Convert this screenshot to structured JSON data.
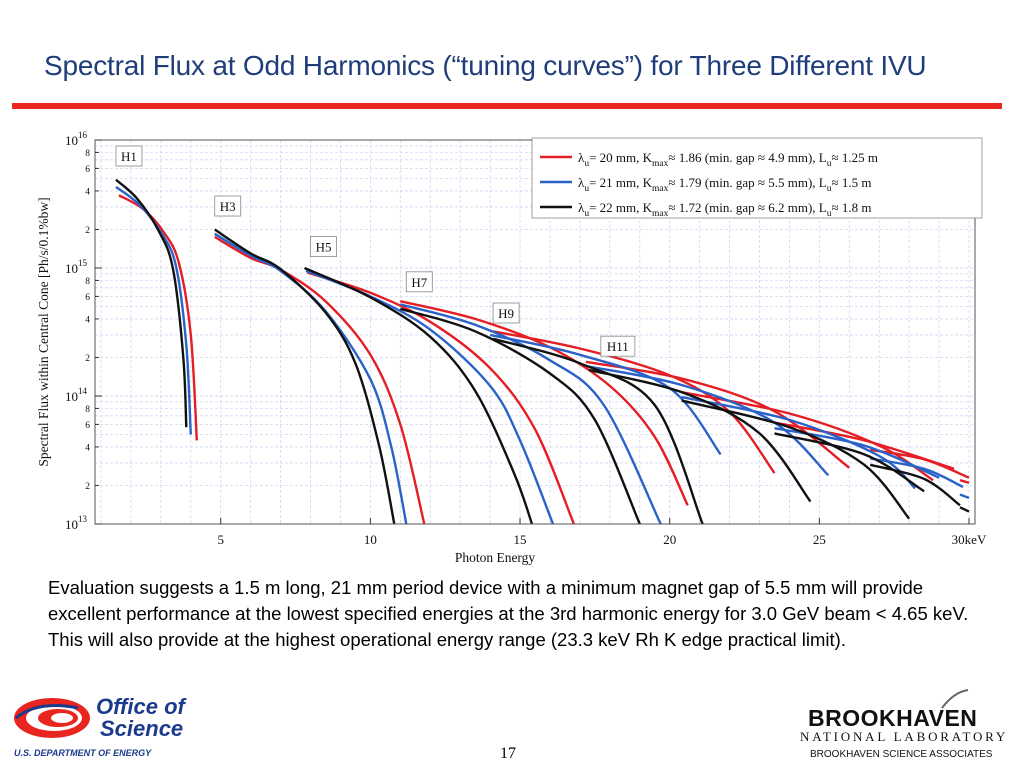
{
  "slide": {
    "title": "Spectral Flux at Odd Harmonics (“tuning curves”) for Three Different IVU",
    "caption": "Evaluation suggests a 1.5 m long, 21 mm period device with a minimum magnet gap of 5.5 mm will provide excellent performance at the lowest specified energies at the 3rd harmonic energy for 3.0 GeV beam < 4.65 keV. This will also provide at the highest operational energy range (23.3 keV Rh K edge practical limit).",
    "page_number": "17",
    "accent_color": "#e8251f",
    "title_color": "#1f3d7a"
  },
  "footer": {
    "doe_office": "Office of",
    "doe_science": "Science",
    "doe_dept": "U.S. DEPARTMENT OF ENERGY",
    "bnl_name": "BROOKHAVEN",
    "bnl_lab": "NATIONAL LABORATORY",
    "bnl_assoc": "BROOKHAVEN SCIENCE ASSOCIATES"
  },
  "chart_data": {
    "type": "line",
    "xlabel": "Photon Energy",
    "ylabel": "Spectral Flux within Central Cone [Ph/s/0.1%bw]",
    "x_unit_label": "30keV",
    "xlim": [
      0.8,
      30.2
    ],
    "ylim": [
      10000000000000.0,
      1e+16
    ],
    "y_scale": "log",
    "x_ticks": [
      5,
      10,
      15,
      20,
      25,
      30
    ],
    "x_tick_labels": [
      "5",
      "10",
      "15",
      "20",
      "25",
      "30keV"
    ],
    "y_major_labels": [
      {
        "value": 10000000000000.0,
        "base": "10",
        "exp": "13"
      },
      {
        "value": 100000000000000.0,
        "base": "10",
        "exp": "14"
      },
      {
        "value": 1000000000000000.0,
        "base": "10",
        "exp": "15"
      },
      {
        "value": 1e+16,
        "base": "10",
        "exp": "16"
      }
    ],
    "y_minor_labels": [
      "2",
      "4",
      "6",
      "8"
    ],
    "grid": true,
    "legend_position": "top-right",
    "harmonic_labels": [
      {
        "text": "H1",
        "x": 1.5,
        "y": 7500000000000000.0
      },
      {
        "text": "H3",
        "x": 4.8,
        "y": 3050000000000000.0
      },
      {
        "text": "H5",
        "x": 8.0,
        "y": 1470000000000000.0
      },
      {
        "text": "H7",
        "x": 11.2,
        "y": 780000000000000.0
      },
      {
        "text": "H9",
        "x": 14.1,
        "y": 445000000000000.0
      },
      {
        "text": "H11",
        "x": 17.7,
        "y": 245000000000000.0
      }
    ],
    "series": [
      {
        "name": "red",
        "legend": {
          "prefix": "λ",
          "sub1": "u",
          "text1": "= 20 mm, K",
          "sub2": "max",
          "text2": "≈ 1.86 (min. gap ≈ 4.9 mm), L",
          "sub3": "u",
          "text3": "≈ 1.25 m"
        },
        "color": "#e51e25",
        "harmonics": [
          {
            "x": [
              1.6,
              2.4,
              3.1,
              3.6,
              4.0,
              4.2
            ],
            "y": [
              3700000000000000.0,
              2900000000000000.0,
              1900000000000000.0,
              1100000000000000.0,
              300000000000000.0,
              45000000000000.0
            ]
          },
          {
            "x": [
              4.8,
              6.0,
              7.0,
              8.5,
              10.0,
              11.0,
              11.8
            ],
            "y": [
              1750000000000000.0,
              1200000000000000.0,
              970000000000000.0,
              550000000000000.0,
              210000000000000.0,
              60000000000000.0,
              10000000000000.0
            ]
          },
          {
            "x": [
              7.9,
              10.0,
              12.0,
              14.0,
              15.5,
              16.8
            ],
            "y": [
              920000000000000.0,
              640000000000000.0,
              380000000000000.0,
              165000000000000.0,
              55000000000000.0,
              10000000000000.0
            ]
          },
          {
            "x": [
              11.0,
              13.5,
              16.0,
              18.0,
              19.5,
              20.6
            ],
            "y": [
              550000000000000.0,
              400000000000000.0,
              240000000000000.0,
              120000000000000.0,
              48000000000000.0,
              14000000000000.0
            ]
          },
          {
            "x": [
              14.1,
              17.0,
              20.0,
              22.0,
              23.5
            ],
            "y": [
              320000000000000.0,
              235000000000000.0,
              145000000000000.0,
              75000000000000.0,
              25000000000000.0
            ]
          },
          {
            "x": [
              17.2,
              20.5,
              23.5,
              26.0
            ],
            "y": [
              185000000000000.0,
              135000000000000.0,
              76000000000000.0,
              27500000000000.0
            ]
          },
          {
            "x": [
              20.4,
              24.0,
              27.0,
              28.8
            ],
            "y": [
              107000000000000.0,
              73000000000000.0,
              41000000000000.0,
              22000000000000.0
            ]
          },
          {
            "x": [
              23.5,
              26.5,
              29.5
            ],
            "y": [
              62000000000000.0,
              45000000000000.0,
              27000000000000.0
            ]
          },
          {
            "x": [
              26.7,
              28.5,
              30.0
            ],
            "y": [
              38000000000000.0,
              32000000000000.0,
              23000000000000.0
            ]
          },
          {
            "x": [
              29.7,
              30.0
            ],
            "y": [
              22000000000000.0,
              21000000000000.0
            ]
          }
        ]
      },
      {
        "name": "blue",
        "legend": {
          "prefix": "λ",
          "sub1": "u",
          "text1": "= 21 mm, K",
          "sub2": "max",
          "text2": "≈ 1.79 (min. gap ≈ 5.5 mm), L",
          "sub3": "u",
          "text3": "≈ 1.5 m"
        },
        "color": "#2b62c8",
        "harmonics": [
          {
            "x": [
              1.5,
              2.3,
              3.0,
              3.5,
              3.85,
              4.0
            ],
            "y": [
              4300000000000000.0,
              3100000000000000.0,
              1900000000000000.0,
              1050000000000000.0,
              250000000000000.0,
              50000000000000.0
            ]
          },
          {
            "x": [
              4.8,
              6.0,
              7.0,
              8.5,
              10.0,
              10.7,
              11.2
            ],
            "y": [
              1850000000000000.0,
              1250000000000000.0,
              950000000000000.0,
              460000000000000.0,
              135000000000000.0,
              40000000000000.0,
              10000000000000.0
            ]
          },
          {
            "x": [
              7.85,
              10.0,
              12.0,
              14.0,
              15.0,
              16.1
            ],
            "y": [
              950000000000000.0,
              600000000000000.0,
              330000000000000.0,
              120000000000000.0,
              45000000000000.0,
              10000000000000.0
            ]
          },
          {
            "x": [
              11.0,
              13.5,
              16.0,
              17.8,
              19.7
            ],
            "y": [
              520000000000000.0,
              360000000000000.0,
              190000000000000.0,
              85000000000000.0,
              10000000000000.0
            ]
          },
          {
            "x": [
              14.0,
              17.0,
              20.0,
              21.7
            ],
            "y": [
              300000000000000.0,
              210000000000000.0,
              115000000000000.0,
              35000000000000.0
            ]
          },
          {
            "x": [
              17.3,
              20.5,
              23.5,
              25.3
            ],
            "y": [
              170000000000000.0,
              120000000000000.0,
              62000000000000.0,
              24000000000000.0
            ]
          },
          {
            "x": [
              20.4,
              24.0,
              27.0,
              28.2
            ],
            "y": [
              98000000000000.0,
              65000000000000.0,
              34000000000000.0,
              19000000000000.0
            ]
          },
          {
            "x": [
              23.5,
              26.5,
              29.0
            ],
            "y": [
              56000000000000.0,
              41000000000000.0,
              23000000000000.0
            ]
          },
          {
            "x": [
              26.7,
              28.5,
              29.8
            ],
            "y": [
              32500000000000.0,
              27000000000000.0,
              19500000000000.0
            ]
          },
          {
            "x": [
              29.7,
              30.0
            ],
            "y": [
              17000000000000.0,
              16000000000000.0
            ]
          }
        ]
      },
      {
        "name": "black",
        "legend": {
          "prefix": "λ",
          "sub1": "u",
          "text1": "= 22 mm, K",
          "sub2": "max",
          "text2": "≈ 1.72 (min. gap ≈ 6.2 mm), L",
          "sub3": "u",
          "text3": "≈ 1.8 m"
        },
        "color": "#111111",
        "harmonics": [
          {
            "x": [
              1.5,
              2.2,
              2.9,
              3.4,
              3.75,
              3.85
            ],
            "y": [
              4900000000000000.0,
              3500000000000000.0,
              2000000000000000.0,
              1000000000000000.0,
              200000000000000.0,
              57000000000000.0
            ]
          },
          {
            "x": [
              4.8,
              6.0,
              7.0,
              8.5,
              9.5,
              10.3,
              10.8
            ],
            "y": [
              2000000000000000.0,
              1300000000000000.0,
              980000000000000.0,
              450000000000000.0,
              180000000000000.0,
              40000000000000.0,
              10000000000000.0
            ]
          },
          {
            "x": [
              7.8,
              10.0,
              12.0,
              13.5,
              14.8,
              15.4
            ],
            "y": [
              1000000000000000.0,
              590000000000000.0,
              290000000000000.0,
              110000000000000.0,
              25000000000000.0,
              10000000000000.0
            ]
          },
          {
            "x": [
              11.0,
              13.5,
              16.0,
              17.5,
              19.0
            ],
            "y": [
              480000000000000.0,
              320000000000000.0,
              150000000000000.0,
              65000000000000.0,
              10000000000000.0
            ]
          },
          {
            "x": [
              14.1,
              17.0,
              19.5,
              21.1
            ],
            "y": [
              280000000000000.0,
              180000000000000.0,
              85000000000000.0,
              10000000000000.0
            ]
          },
          {
            "x": [
              17.3,
              20.5,
              23.0,
              24.7
            ],
            "y": [
              160000000000000.0,
              105000000000000.0,
              51000000000000.0,
              15000000000000.0
            ]
          },
          {
            "x": [
              20.4,
              24.0,
              26.5,
              28.0
            ],
            "y": [
              92000000000000.0,
              57000000000000.0,
              29000000000000.0,
              11000000000000.0
            ]
          },
          {
            "x": [
              23.5,
              26.5,
              28.5
            ],
            "y": [
              51000000000000.0,
              35000000000000.0,
              18000000000000.0
            ]
          },
          {
            "x": [
              26.7,
              28.5,
              29.7
            ],
            "y": [
              29000000000000.0,
              22500000000000.0,
              14000000000000.0
            ]
          },
          {
            "x": [
              29.7,
              30.0
            ],
            "y": [
              13500000000000.0,
              12500000000000.0
            ]
          }
        ]
      }
    ]
  }
}
